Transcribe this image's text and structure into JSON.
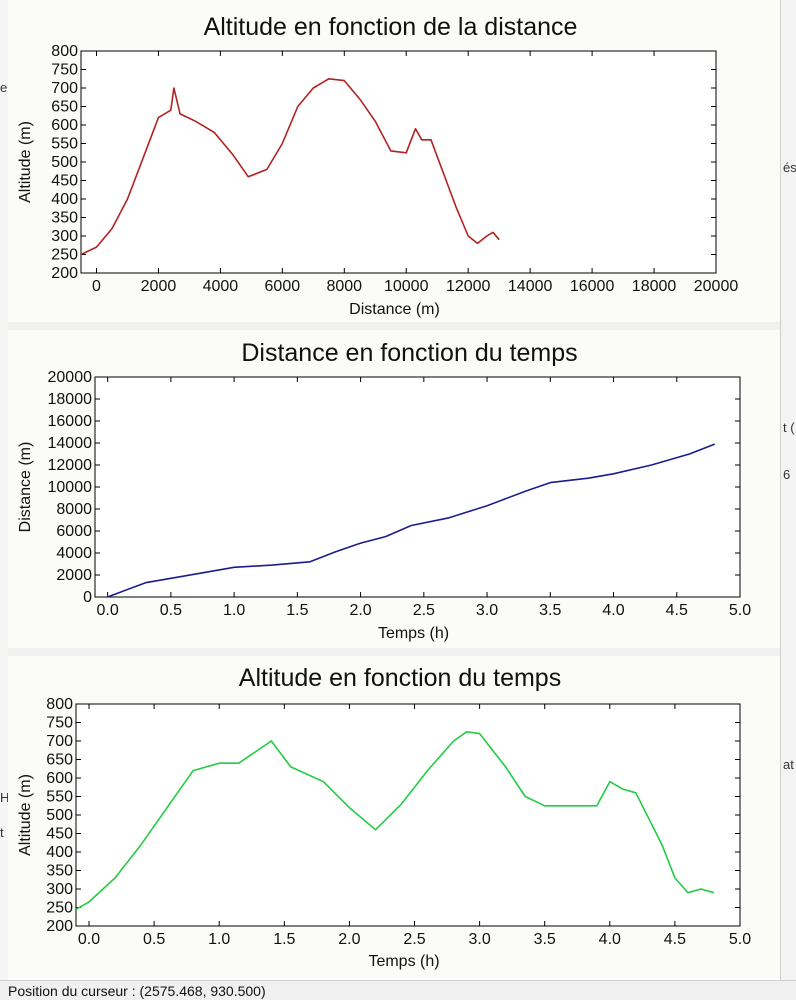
{
  "status_bar": {
    "text": "Position du curseur : (2575.468, 930.500)"
  },
  "edge_fragments": [
    "e",
    "és",
    "t (",
    "6",
    "at",
    "H",
    "t"
  ],
  "chart_data": [
    {
      "type": "line",
      "title": "Altitude en fonction de la distance",
      "xlabel": "Distance (m)",
      "ylabel": "Altitude (m)",
      "xlim": [
        -500,
        20000
      ],
      "ylim": [
        200,
        800
      ],
      "x_ticks": [
        0,
        2000,
        4000,
        6000,
        8000,
        10000,
        12000,
        14000,
        16000,
        18000,
        20000
      ],
      "y_ticks": [
        200,
        250,
        300,
        350,
        400,
        450,
        500,
        550,
        600,
        650,
        700,
        750,
        800
      ],
      "color": "#b22222",
      "series": [
        {
          "x": [
            -500,
            0,
            500,
            1000,
            1500,
            2000,
            2400,
            2500,
            2700,
            3200,
            3800,
            4400,
            4900,
            5500,
            6000,
            6500,
            7000,
            7500,
            8000,
            8500,
            9000,
            9500,
            10000,
            10300,
            10500,
            10800,
            11200,
            11600,
            12000,
            12300,
            12600,
            12800,
            13000
          ],
          "y": [
            250,
            270,
            320,
            400,
            510,
            620,
            640,
            700,
            630,
            610,
            580,
            520,
            460,
            480,
            550,
            650,
            700,
            725,
            720,
            670,
            610,
            530,
            525,
            590,
            560,
            560,
            470,
            380,
            300,
            280,
            300,
            310,
            290
          ]
        }
      ]
    },
    {
      "type": "line",
      "title": "Distance en fonction du temps",
      "xlabel": "Temps (h)",
      "ylabel": "Distance (m)",
      "xlim": [
        -0.1,
        5.0
      ],
      "ylim": [
        0,
        20000
      ],
      "x_ticks": [
        "0.0",
        "0.5",
        "1.0",
        "1.5",
        "2.0",
        "2.5",
        "3.0",
        "3.5",
        "4.0",
        "4.5",
        "5.0"
      ],
      "y_ticks": [
        0,
        2000,
        4000,
        6000,
        8000,
        10000,
        12000,
        14000,
        16000,
        18000,
        20000
      ],
      "color": "#1c1c8c",
      "series": [
        {
          "x": [
            0,
            0.3,
            0.7,
            1.0,
            1.3,
            1.6,
            1.8,
            2.0,
            2.2,
            2.4,
            2.7,
            3.0,
            3.3,
            3.5,
            3.8,
            4.0,
            4.3,
            4.6,
            4.8
          ],
          "y": [
            0,
            1300,
            2100,
            2700,
            2900,
            3200,
            4100,
            4900,
            5500,
            6500,
            7200,
            8300,
            9600,
            10400,
            10800,
            11200,
            12000,
            13000,
            13900
          ]
        }
      ]
    },
    {
      "type": "line",
      "title": "Altitude en fonction du temps",
      "xlabel": "Temps (h)",
      "ylabel": "Altitude (m)",
      "xlim": [
        -0.1,
        5.0
      ],
      "ylim": [
        200,
        800
      ],
      "x_ticks": [
        "0.0",
        "0.5",
        "1.0",
        "1.5",
        "2.0",
        "2.5",
        "3.0",
        "3.5",
        "4.0",
        "4.5",
        "5.0"
      ],
      "y_ticks": [
        200,
        250,
        300,
        350,
        400,
        450,
        500,
        550,
        600,
        650,
        700,
        750,
        800
      ],
      "color": "#22cc44",
      "series": [
        {
          "x": [
            -0.1,
            0.0,
            0.2,
            0.4,
            0.6,
            0.8,
            1.0,
            1.15,
            1.4,
            1.55,
            1.8,
            2.0,
            2.2,
            2.4,
            2.6,
            2.8,
            2.9,
            3.0,
            3.2,
            3.35,
            3.5,
            3.6,
            3.8,
            3.9,
            4.0,
            4.1,
            4.2,
            4.4,
            4.5,
            4.6,
            4.7,
            4.8
          ],
          "y": [
            245,
            265,
            330,
            420,
            520,
            620,
            640,
            640,
            700,
            630,
            590,
            520,
            460,
            530,
            620,
            700,
            725,
            720,
            630,
            550,
            525,
            525,
            525,
            525,
            590,
            570,
            560,
            420,
            330,
            290,
            300,
            290
          ]
        }
      ]
    }
  ]
}
